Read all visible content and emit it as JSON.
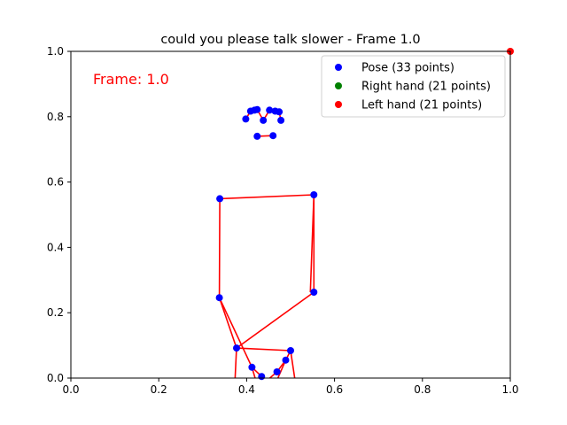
{
  "chart_data": {
    "type": "scatter",
    "title": "could you please talk slower - Frame 1.0",
    "annotation": "Frame: 1.0",
    "annotation_color": "#ff0000",
    "xlabel": "",
    "ylabel": "",
    "xlim": [
      0.0,
      1.0
    ],
    "ylim": [
      0.0,
      1.0
    ],
    "x_ticks": [
      0.0,
      0.2,
      0.4,
      0.6,
      0.8,
      1.0
    ],
    "x_tick_labels": [
      "0.0",
      "0.2",
      "0.4",
      "0.6",
      "0.8",
      "1.0"
    ],
    "y_ticks": [
      0.0,
      0.2,
      0.4,
      0.6,
      0.8,
      1.0
    ],
    "y_tick_labels": [
      "0.0",
      "0.2",
      "0.4",
      "0.6",
      "0.8",
      "1.0"
    ],
    "grid": false,
    "legend_position": "top-right",
    "connection_color": "#ff0000",
    "series": [
      {
        "name": "Pose (33 points)",
        "color": "#0000ff",
        "points": [
          [
            0.434,
            0.005
          ],
          [
            0.469,
            0.019
          ],
          [
            0.412,
            0.033
          ],
          [
            0.489,
            0.055
          ],
          [
            0.377,
            0.092
          ],
          [
            0.5,
            0.084
          ],
          [
            0.338,
            0.246
          ],
          [
            0.553,
            0.263
          ],
          [
            0.339,
            0.549
          ],
          [
            0.553,
            0.561
          ],
          [
            0.424,
            0.74
          ],
          [
            0.46,
            0.742
          ],
          [
            0.398,
            0.793
          ],
          [
            0.438,
            0.789
          ],
          [
            0.478,
            0.789
          ],
          [
            0.409,
            0.817
          ],
          [
            0.418,
            0.82
          ],
          [
            0.424,
            0.822
          ],
          [
            0.452,
            0.82
          ],
          [
            0.465,
            0.817
          ],
          [
            0.474,
            0.815
          ]
        ],
        "lines": [
          [
            [
              0.424,
              0.74
            ],
            [
              0.46,
              0.742
            ]
          ],
          [
            [
              0.398,
              0.793
            ],
            [
              0.409,
              0.817
            ],
            [
              0.418,
              0.82
            ],
            [
              0.424,
              0.822
            ],
            [
              0.438,
              0.789
            ],
            [
              0.452,
              0.82
            ],
            [
              0.465,
              0.817
            ],
            [
              0.474,
              0.815
            ],
            [
              0.478,
              0.789
            ]
          ],
          [
            [
              0.339,
              0.549
            ],
            [
              0.553,
              0.561
            ]
          ],
          [
            [
              0.339,
              0.549
            ],
            [
              0.338,
              0.246
            ],
            [
              0.412,
              0.033
            ],
            [
              0.434,
              0.005
            ]
          ],
          [
            [
              0.553,
              0.561
            ],
            [
              0.553,
              0.263
            ],
            [
              0.377,
              0.092
            ],
            [
              0.372,
              -0.05
            ]
          ],
          [
            [
              0.553,
              0.561
            ],
            [
              0.545,
              0.263
            ]
          ],
          [
            [
              0.377,
              0.092
            ],
            [
              0.5,
              0.084
            ],
            [
              0.489,
              0.055
            ],
            [
              0.469,
              0.019
            ],
            [
              0.41,
              -0.05
            ]
          ],
          [
            [
              0.338,
              0.246
            ],
            [
              0.377,
              0.092
            ]
          ],
          [
            [
              0.412,
              0.033
            ],
            [
              0.43,
              -0.05
            ]
          ],
          [
            [
              0.5,
              0.084
            ],
            [
              0.515,
              -0.05
            ]
          ],
          [
            [
              0.489,
              0.055
            ],
            [
              0.455,
              -0.05
            ]
          ]
        ]
      },
      {
        "name": "Right hand (21 points)",
        "color": "#008000",
        "points": [],
        "lines": []
      },
      {
        "name": "Left hand (21 points)",
        "color": "#ff0000",
        "points": [
          [
            1.0,
            1.0
          ]
        ],
        "lines": []
      }
    ]
  }
}
